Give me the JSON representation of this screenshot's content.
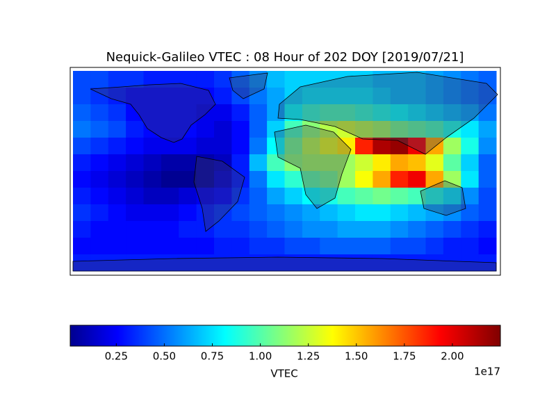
{
  "chart_data": {
    "type": "heatmap",
    "title": "Nequick-Galileo VTEC : 08 Hour of 202 DOY [2019/07/21]",
    "colormap": "jet",
    "xlim": [
      -180,
      180
    ],
    "ylim": [
      -90,
      90
    ],
    "x": [
      -172.5,
      -157.5,
      -142.5,
      -127.5,
      -112.5,
      -97.5,
      -82.5,
      -67.5,
      -52.5,
      -37.5,
      -22.5,
      -7.5,
      7.5,
      22.5,
      37.5,
      52.5,
      67.5,
      82.5,
      97.5,
      112.5,
      127.5,
      142.5,
      157.5,
      172.5
    ],
    "y": [
      82.5,
      67.5,
      52.5,
      37.5,
      22.5,
      7.5,
      -7.5,
      -22.5,
      -37.5,
      -52.5,
      -67.5,
      -82.5
    ],
    "values": [
      [
        0.45,
        0.45,
        0.4,
        0.4,
        0.35,
        0.35,
        0.35,
        0.35,
        0.4,
        0.5,
        0.6,
        0.7,
        0.75,
        0.75,
        0.75,
        0.75,
        0.75,
        0.7,
        0.7,
        0.7,
        0.65,
        0.6,
        0.55,
        0.5
      ],
      [
        0.45,
        0.4,
        0.35,
        0.3,
        0.3,
        0.3,
        0.3,
        0.3,
        0.35,
        0.45,
        0.55,
        0.65,
        0.75,
        0.8,
        0.8,
        0.8,
        0.8,
        0.75,
        0.7,
        0.7,
        0.65,
        0.6,
        0.55,
        0.5
      ],
      [
        0.5,
        0.45,
        0.4,
        0.3,
        0.3,
        0.3,
        0.3,
        0.25,
        0.25,
        0.35,
        0.5,
        0.65,
        0.85,
        0.95,
        1.0,
        1.0,
        0.95,
        0.9,
        0.85,
        0.8,
        0.75,
        0.7,
        0.65,
        0.55
      ],
      [
        0.55,
        0.5,
        0.45,
        0.35,
        0.3,
        0.3,
        0.3,
        0.25,
        0.2,
        0.3,
        0.5,
        0.75,
        1.0,
        1.15,
        1.25,
        1.3,
        1.25,
        1.2,
        1.1,
        1.05,
        1.0,
        0.9,
        0.8,
        0.65
      ],
      [
        0.45,
        0.4,
        0.35,
        0.3,
        0.25,
        0.25,
        0.25,
        0.2,
        0.2,
        0.3,
        0.55,
        0.85,
        1.1,
        1.25,
        1.35,
        1.45,
        1.9,
        2.15,
        2.2,
        2.0,
        1.6,
        1.2,
        0.9,
        0.6
      ],
      [
        0.35,
        0.3,
        0.25,
        0.2,
        0.15,
        0.1,
        0.1,
        0.1,
        0.15,
        0.35,
        0.7,
        1.0,
        1.15,
        1.2,
        1.2,
        1.2,
        1.3,
        1.45,
        1.6,
        1.55,
        1.35,
        1.05,
        0.75,
        0.5
      ],
      [
        0.3,
        0.25,
        0.2,
        0.15,
        0.1,
        0.05,
        0.05,
        0.1,
        0.2,
        0.35,
        0.55,
        0.8,
        0.95,
        1.05,
        1.1,
        1.2,
        1.4,
        1.6,
        1.9,
        2.0,
        1.6,
        1.2,
        0.8,
        0.5
      ],
      [
        0.35,
        0.3,
        0.25,
        0.2,
        0.15,
        0.15,
        0.2,
        0.25,
        0.3,
        0.4,
        0.5,
        0.65,
        0.75,
        0.85,
        0.9,
        1.0,
        1.05,
        1.1,
        1.05,
        1.0,
        0.9,
        0.8,
        0.6,
        0.45
      ],
      [
        0.4,
        0.35,
        0.3,
        0.25,
        0.25,
        0.25,
        0.3,
        0.35,
        0.4,
        0.45,
        0.5,
        0.55,
        0.6,
        0.65,
        0.7,
        0.75,
        0.8,
        0.8,
        0.75,
        0.7,
        0.65,
        0.6,
        0.5,
        0.45
      ],
      [
        0.35,
        0.3,
        0.3,
        0.3,
        0.3,
        0.3,
        0.35,
        0.35,
        0.4,
        0.4,
        0.45,
        0.5,
        0.55,
        0.6,
        0.6,
        0.65,
        0.65,
        0.65,
        0.6,
        0.55,
        0.5,
        0.45,
        0.4,
        0.35
      ],
      [
        0.3,
        0.3,
        0.3,
        0.3,
        0.3,
        0.3,
        0.3,
        0.3,
        0.35,
        0.35,
        0.4,
        0.4,
        0.45,
        0.45,
        0.5,
        0.5,
        0.5,
        0.5,
        0.45,
        0.45,
        0.4,
        0.35,
        0.35,
        0.3
      ],
      [
        0.35,
        0.35,
        0.35,
        0.35,
        0.35,
        0.35,
        0.35,
        0.35,
        0.35,
        0.35,
        0.35,
        0.35,
        0.35,
        0.35,
        0.35,
        0.35,
        0.35,
        0.35,
        0.35,
        0.35,
        0.35,
        0.35,
        0.35,
        0.35
      ]
    ],
    "colorbar": {
      "label": "VTEC",
      "offset_label": "1e17",
      "clim": [
        0.01,
        2.25
      ],
      "ticks": [
        0.25,
        {
          "value": 0.5,
          "label": "0.50"
        },
        0.75,
        {
          "value": 1,
          "label": "1.00"
        },
        1.25,
        {
          "value": 1.5,
          "label": "1.50"
        },
        1.75,
        {
          "value": 2,
          "label": "2.00"
        }
      ]
    }
  }
}
